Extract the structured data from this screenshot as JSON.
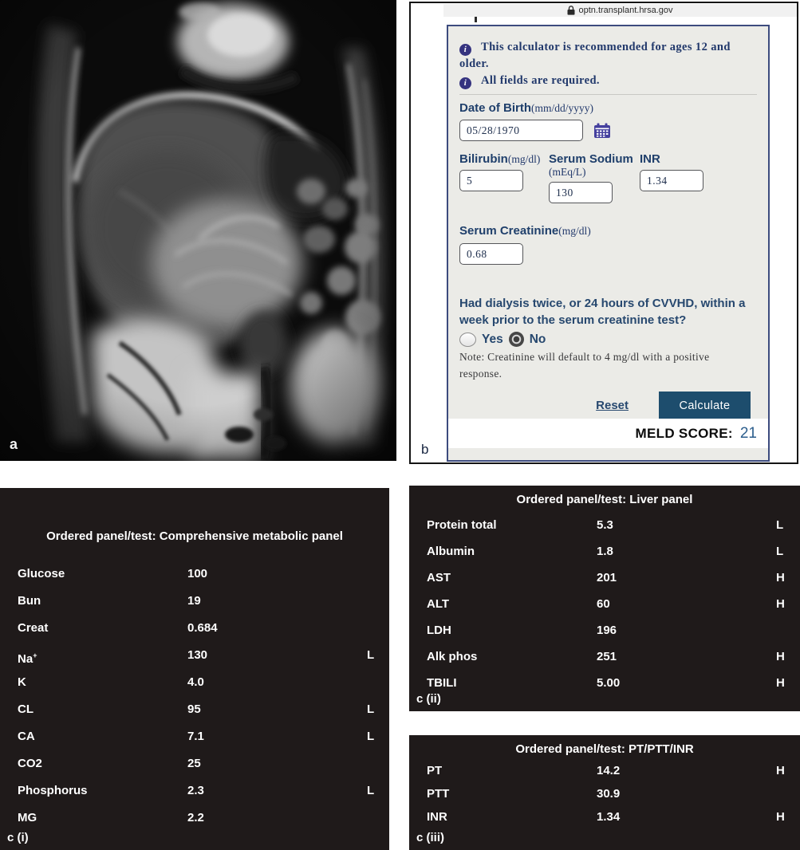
{
  "panel_a": {
    "label": "a"
  },
  "panel_b": {
    "label": "b",
    "url": "optn.transplant.hrsa.gov",
    "info_line_1": "This calculator is recommended for ages 12 and older.",
    "info_line_2": "All fields are required.",
    "dob_label": "Date of Birth",
    "dob_format": "(mm/dd/yyyy)",
    "dob_value": "05/28/1970",
    "bilirubin_label": "Bilirubin",
    "bilirubin_unit": "(mg/dl)",
    "bilirubin_value": "5",
    "sodium_label": "Serum Sodium",
    "sodium_unit": "(mEq/L)",
    "sodium_value": "130",
    "inr_label": "INR",
    "inr_value": "1.34",
    "creatinine_label": "Serum Creatinine",
    "creatinine_unit": "(mg/dl)",
    "creatinine_value": "0.68",
    "question": "Had dialysis twice, or 24 hours of CVVHD, within a week prior to the serum creatinine test?",
    "yes_label": "Yes",
    "no_label": "No",
    "selected_radio": "No",
    "note": "Note: Creatinine will default to 4 mg/dl with a positive response.",
    "reset_label": "Reset",
    "calculate_label": "Calculate",
    "meld_label": "MELD SCORE:",
    "meld_value": "21",
    "colors": {
      "accent_navy": "#1f3f6b",
      "button_bg": "#1d4d6d",
      "meld_value_blue": "#2c5e8d",
      "calc_bg": "#ebebe7",
      "info_icon_bg": "#35337f"
    }
  },
  "tables": [
    {
      "title": "Ordered panel/test: Comprehensive metabolic panel",
      "label": "c (i)",
      "rows": [
        {
          "name": "Glucose",
          "value": "100",
          "flag": ""
        },
        {
          "name": "Bun",
          "value": "19",
          "flag": ""
        },
        {
          "name": "Creat",
          "value": "0.684",
          "flag": ""
        },
        {
          "name": "Na",
          "sup": "+",
          "value": "130",
          "flag": "L"
        },
        {
          "name": "K",
          "value": "4.0",
          "flag": ""
        },
        {
          "name": "CL",
          "value": "95",
          "flag": "L"
        },
        {
          "name": "CA",
          "value": "7.1",
          "flag": "L"
        },
        {
          "name": "CO2",
          "value": "25",
          "flag": ""
        },
        {
          "name": "Phosphorus",
          "value": "2.3",
          "flag": "L"
        },
        {
          "name": "MG",
          "value": "2.2",
          "flag": ""
        }
      ],
      "table_bg": "#1f1a1a"
    },
    {
      "title": "Ordered panel/test: Liver panel",
      "label": "c (ii)",
      "rows": [
        {
          "name": "Protein total",
          "value": "5.3",
          "flag": "L"
        },
        {
          "name": "Albumin",
          "value": "1.8",
          "flag": "L"
        },
        {
          "name": "AST",
          "value": "201",
          "flag": "H"
        },
        {
          "name": "ALT",
          "value": "60",
          "flag": "H"
        },
        {
          "name": "LDH",
          "value": "196",
          "flag": ""
        },
        {
          "name": "Alk phos",
          "value": "251",
          "flag": "H"
        },
        {
          "name": "TBILI",
          "value": "5.00",
          "flag": "H"
        }
      ],
      "table_bg": "#1f1a1a"
    },
    {
      "title": "Ordered panel/test: PT/PTT/INR",
      "label": "c (iii)",
      "rows": [
        {
          "name": "PT",
          "value": "14.2",
          "flag": "H"
        },
        {
          "name": "PTT",
          "value": "30.9",
          "flag": ""
        },
        {
          "name": "INR",
          "value": "1.34",
          "flag": "H"
        }
      ],
      "table_bg": "#1f1a1a"
    }
  ]
}
